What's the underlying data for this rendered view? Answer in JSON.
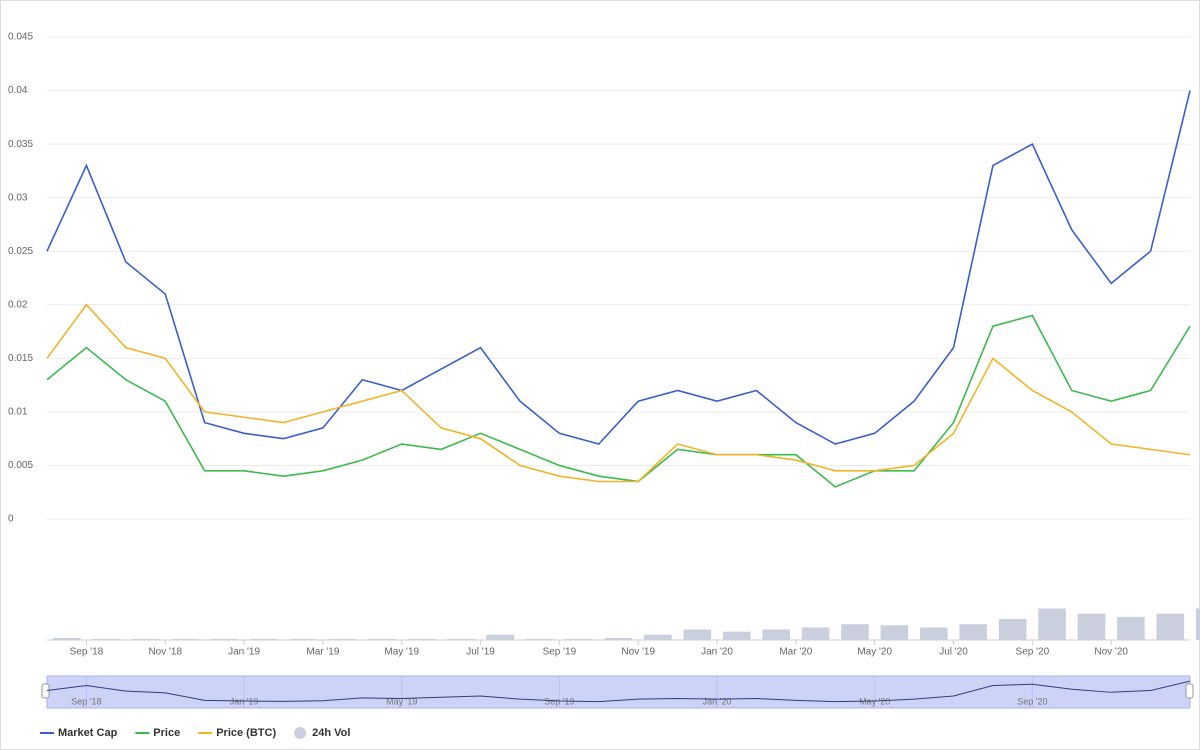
{
  "chart_data": {
    "type": "line",
    "x": [
      "2018-08",
      "2018-09",
      "2018-10",
      "2018-11",
      "2018-12",
      "2019-01",
      "2019-02",
      "2019-03",
      "2019-04",
      "2019-05",
      "2019-06",
      "2019-07",
      "2019-08",
      "2019-09",
      "2019-10",
      "2019-11",
      "2019-12",
      "2020-01",
      "2020-02",
      "2020-03",
      "2020-04",
      "2020-05",
      "2020-06",
      "2020-07",
      "2020-08",
      "2020-09",
      "2020-10",
      "2020-11",
      "2020-12",
      "2021-01"
    ],
    "xlim": [
      "2018-08",
      "2021-01"
    ],
    "xticks": [
      {
        "value": "2018-09",
        "label": "Sep '18"
      },
      {
        "value": "2018-11",
        "label": "Nov '18"
      },
      {
        "value": "2019-01",
        "label": "Jan '19"
      },
      {
        "value": "2019-03",
        "label": "Mar '19"
      },
      {
        "value": "2019-05",
        "label": "May '19"
      },
      {
        "value": "2019-07",
        "label": "Jul '19"
      },
      {
        "value": "2019-09",
        "label": "Sep '19"
      },
      {
        "value": "2019-11",
        "label": "Nov '19"
      },
      {
        "value": "2020-01",
        "label": "Jan '20"
      },
      {
        "value": "2020-03",
        "label": "Mar '20"
      },
      {
        "value": "2020-05",
        "label": "May '20"
      },
      {
        "value": "2020-07",
        "label": "Jul '20"
      },
      {
        "value": "2020-09",
        "label": "Sep '20"
      },
      {
        "value": "2020-11",
        "label": "Nov '20"
      }
    ],
    "ylim": [
      0,
      0.045
    ],
    "yticks": [
      0,
      0.005,
      0.01,
      0.015,
      0.02,
      0.025,
      0.03,
      0.035,
      0.04,
      0.045
    ],
    "y2lim": [
      0,
      100
    ],
    "grid": true,
    "legend": "bottom-left",
    "series": [
      {
        "name": "Market Cap",
        "color": "#3a5fcd",
        "values": [
          0.025,
          0.033,
          0.024,
          0.021,
          0.009,
          0.008,
          0.0075,
          0.0085,
          0.013,
          0.012,
          0.014,
          0.016,
          0.011,
          0.008,
          0.007,
          0.011,
          0.012,
          0.011,
          0.012,
          0.009,
          0.007,
          0.008,
          0.011,
          0.016,
          0.033,
          0.035,
          0.027,
          0.022,
          0.025,
          0.04
        ]
      },
      {
        "name": "Price",
        "color": "#3dba4e",
        "values": [
          0.013,
          0.016,
          0.013,
          0.011,
          0.0045,
          0.0045,
          0.004,
          0.0045,
          0.0055,
          0.007,
          0.0065,
          0.008,
          0.0065,
          0.005,
          0.004,
          0.0035,
          0.0065,
          0.006,
          0.006,
          0.006,
          0.003,
          0.0045,
          0.0045,
          0.009,
          0.018,
          0.019,
          0.012,
          0.011,
          0.012,
          0.018
        ]
      },
      {
        "name": "Price (BTC)",
        "color": "#f0b429",
        "values": [
          0.015,
          0.02,
          0.016,
          0.015,
          0.01,
          0.0095,
          0.009,
          0.01,
          0.011,
          0.012,
          0.0085,
          0.0075,
          0.005,
          0.004,
          0.0035,
          0.0035,
          0.007,
          0.006,
          0.006,
          0.0055,
          0.0045,
          0.0045,
          0.005,
          0.008,
          0.015,
          0.012,
          0.01,
          0.007,
          0.0065,
          0.006
        ]
      },
      {
        "name": "24h Vol",
        "color": "#c9cfdc",
        "type": "bar",
        "axis": "y2",
        "values": [
          2,
          1,
          1,
          1,
          1,
          1,
          1,
          1,
          1,
          1,
          1,
          5,
          1,
          1,
          2,
          5,
          10,
          8,
          10,
          12,
          15,
          14,
          12,
          15,
          20,
          30,
          25,
          22,
          25,
          30
        ]
      }
    ]
  }
}
